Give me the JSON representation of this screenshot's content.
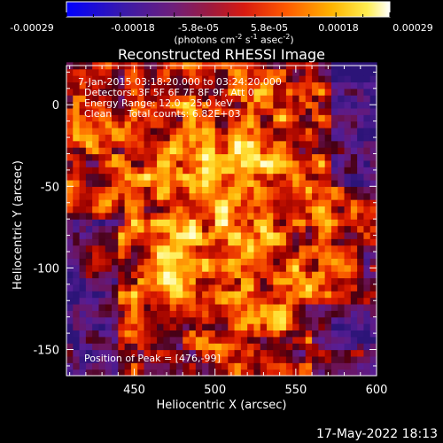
{
  "colorbar": {
    "tick_labels": [
      "-0.00029",
      "-0.00018",
      "-5.8e-05",
      "5.8e-05",
      "0.00018",
      "0.00029"
    ],
    "units_text": "(photons cm",
    "units_exp1": "-2",
    "units_mid": " s",
    "units_exp2": "-1",
    "units_tail": " asec",
    "units_exp3": "-2",
    "units_close": ")"
  },
  "chart_data": {
    "type": "heatmap",
    "title": "Reconstructed RHESSI Image",
    "xlabel": "Heliocentric X (arcsec)",
    "ylabel": "Heliocentric Y (arcsec)",
    "xlim": [
      408,
      600
    ],
    "ylim": [
      -166,
      24
    ],
    "xticks": [
      450,
      500,
      550,
      600
    ],
    "yticks": [
      0,
      -50,
      -100,
      -150
    ],
    "color_range": [
      -0.00029,
      0.00029
    ],
    "colormap": "blue-purple-red-yellow-white",
    "peak": [
      476,
      -99
    ],
    "annotations": [
      "7-Jan-2015 03:18:20.000 to 03:24:20.000",
      "Detectors: 3F 5F 6F 7F 8F 9F, Att 0",
      "Energy Range: 12.0 - 25.0 keV",
      "Clean     Total counts: 6.82E+03"
    ],
    "peak_label": "Position of Peak = [476,-99]"
  },
  "timestamp": "17-May-2022 18:13"
}
